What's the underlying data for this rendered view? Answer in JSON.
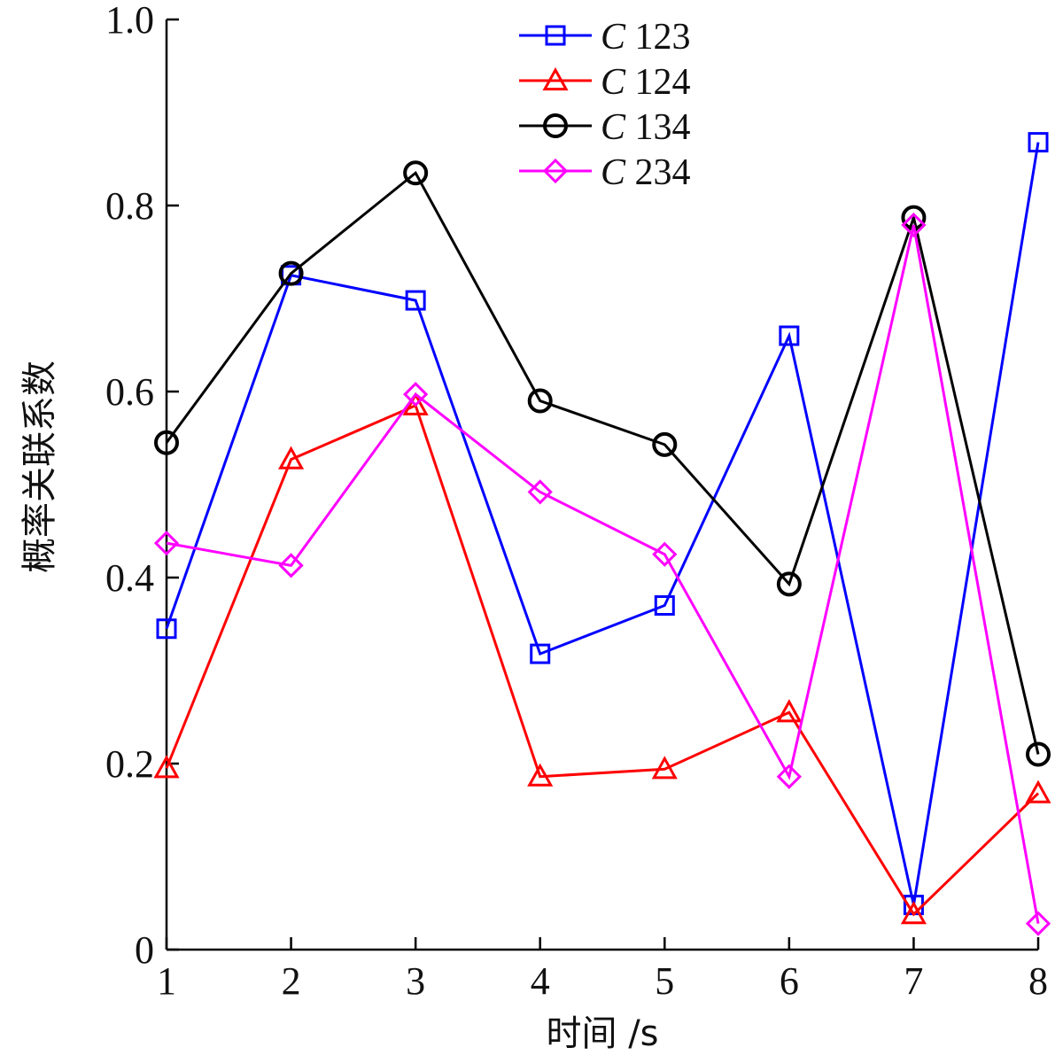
{
  "chart_data": {
    "type": "line",
    "title": "",
    "xlabel": "时间 /s",
    "ylabel": "概率关联系数",
    "x": [
      1,
      2,
      3,
      4,
      5,
      6,
      7,
      8
    ],
    "xlim": [
      1,
      8
    ],
    "ylim": [
      0,
      1.0
    ],
    "xticks": [
      1,
      2,
      3,
      4,
      5,
      6,
      7,
      8
    ],
    "xtick_labels": [
      "1",
      "2",
      "3",
      "4",
      "5",
      "6",
      "7",
      "8"
    ],
    "yticks": [
      0,
      0.2,
      0.4,
      0.6,
      0.8,
      1.0
    ],
    "ytick_labels": [
      "0",
      "0.2",
      "0.4",
      "0.6",
      "0.8",
      "1.0"
    ],
    "grid": false,
    "legend_position": "top-center",
    "series": [
      {
        "name": "C 123",
        "name_italic": "C",
        "name_number": "123",
        "color": "#0000ff",
        "marker": "square",
        "values": [
          0.345,
          0.725,
          0.698,
          0.318,
          0.37,
          0.66,
          0.048,
          0.868
        ]
      },
      {
        "name": "C 124",
        "name_italic": "C",
        "name_number": "124",
        "color": "#ff0000",
        "marker": "triangle",
        "values": [
          0.195,
          0.527,
          0.585,
          0.186,
          0.194,
          0.255,
          0.038,
          0.168
        ]
      },
      {
        "name": "C 134",
        "name_italic": "C",
        "name_number": "134",
        "color": "#000000",
        "marker": "circle",
        "values": [
          0.545,
          0.727,
          0.835,
          0.59,
          0.543,
          0.393,
          0.787,
          0.21
        ]
      },
      {
        "name": "C 234",
        "name_italic": "C",
        "name_number": "234",
        "color": "#ff00ff",
        "marker": "diamond",
        "values": [
          0.437,
          0.413,
          0.597,
          0.492,
          0.425,
          0.186,
          0.779,
          0.028
        ]
      }
    ]
  }
}
